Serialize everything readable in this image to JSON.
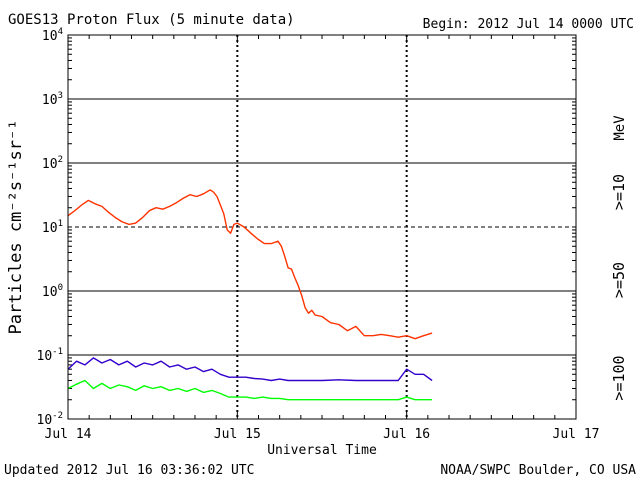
{
  "chart_data": {
    "type": "line",
    "title": "GOES13 Proton Flux (5 minute data)",
    "begin_label": "Begin: 2012 Jul 14 0000 UTC",
    "xlabel": "Universal Time",
    "ylabel": "Particles cm⁻²s⁻¹sr⁻¹",
    "footer_left": "Updated 2012 Jul 16 03:36:02 UTC",
    "footer_right": "NOAA/SWPC Boulder, CO USA",
    "units": "MeV",
    "x_ticks": [
      "Jul 14",
      "Jul 15",
      "Jul 16",
      "Jul 17"
    ],
    "xlim_days": [
      0,
      3
    ],
    "y_scale": "log",
    "ylim": [
      0.01,
      10000
    ],
    "y_ticks": [
      {
        "base": "10",
        "exp": "4"
      },
      {
        "base": "10",
        "exp": "3"
      },
      {
        "base": "10",
        "exp": "2"
      },
      {
        "base": "10",
        "exp": "1"
      },
      {
        "base": "10",
        "exp": "0"
      },
      {
        "base": "10",
        "exp": "-1"
      },
      {
        "base": "10",
        "exp": "-2"
      }
    ],
    "threshold_lines": [
      0.1,
      1,
      10,
      100,
      1000
    ],
    "dashed_lines": [
      10
    ],
    "series": [
      {
        "name": ">=10",
        "color": "#ff3300",
        "points": [
          [
            0,
            15
          ],
          [
            0.04,
            18
          ],
          [
            0.08,
            22
          ],
          [
            0.12,
            26
          ],
          [
            0.16,
            23
          ],
          [
            0.2,
            21
          ],
          [
            0.24,
            17
          ],
          [
            0.28,
            14
          ],
          [
            0.32,
            12
          ],
          [
            0.36,
            11
          ],
          [
            0.4,
            11.5
          ],
          [
            0.44,
            14
          ],
          [
            0.48,
            18
          ],
          [
            0.52,
            20
          ],
          [
            0.56,
            19
          ],
          [
            0.6,
            21
          ],
          [
            0.64,
            24
          ],
          [
            0.68,
            28
          ],
          [
            0.72,
            32
          ],
          [
            0.76,
            30
          ],
          [
            0.8,
            33
          ],
          [
            0.84,
            38
          ],
          [
            0.86,
            35
          ],
          [
            0.88,
            30
          ],
          [
            0.9,
            22
          ],
          [
            0.92,
            16
          ],
          [
            0.94,
            9
          ],
          [
            0.96,
            8
          ],
          [
            0.98,
            11
          ],
          [
            1.0,
            11.5
          ],
          [
            1.04,
            10
          ],
          [
            1.08,
            8
          ],
          [
            1.12,
            6.5
          ],
          [
            1.16,
            5.5
          ],
          [
            1.2,
            5.5
          ],
          [
            1.24,
            6
          ],
          [
            1.26,
            5
          ],
          [
            1.28,
            3.5
          ],
          [
            1.3,
            2.3
          ],
          [
            1.32,
            2.2
          ],
          [
            1.34,
            1.6
          ],
          [
            1.36,
            1.2
          ],
          [
            1.38,
            0.85
          ],
          [
            1.4,
            0.55
          ],
          [
            1.42,
            0.45
          ],
          [
            1.44,
            0.5
          ],
          [
            1.46,
            0.42
          ],
          [
            1.5,
            0.4
          ],
          [
            1.55,
            0.32
          ],
          [
            1.6,
            0.3
          ],
          [
            1.65,
            0.24
          ],
          [
            1.7,
            0.28
          ],
          [
            1.75,
            0.2
          ],
          [
            1.8,
            0.2
          ],
          [
            1.85,
            0.21
          ],
          [
            1.9,
            0.2
          ],
          [
            1.95,
            0.19
          ],
          [
            2.0,
            0.2
          ],
          [
            2.05,
            0.18
          ],
          [
            2.1,
            0.2
          ],
          [
            2.15,
            0.22
          ]
        ]
      },
      {
        "name": ">=50",
        "color": "#3300cc",
        "points": [
          [
            0,
            0.06
          ],
          [
            0.05,
            0.08
          ],
          [
            0.1,
            0.07
          ],
          [
            0.15,
            0.09
          ],
          [
            0.2,
            0.075
          ],
          [
            0.25,
            0.085
          ],
          [
            0.3,
            0.07
          ],
          [
            0.35,
            0.08
          ],
          [
            0.4,
            0.065
          ],
          [
            0.45,
            0.075
          ],
          [
            0.5,
            0.07
          ],
          [
            0.55,
            0.08
          ],
          [
            0.6,
            0.065
          ],
          [
            0.65,
            0.07
          ],
          [
            0.7,
            0.06
          ],
          [
            0.75,
            0.065
          ],
          [
            0.8,
            0.055
          ],
          [
            0.85,
            0.06
          ],
          [
            0.9,
            0.05
          ],
          [
            0.95,
            0.045
          ],
          [
            1.0,
            0.045
          ],
          [
            1.05,
            0.045
          ],
          [
            1.1,
            0.043
          ],
          [
            1.15,
            0.042
          ],
          [
            1.2,
            0.04
          ],
          [
            1.25,
            0.042
          ],
          [
            1.3,
            0.04
          ],
          [
            1.35,
            0.04
          ],
          [
            1.4,
            0.04
          ],
          [
            1.5,
            0.04
          ],
          [
            1.6,
            0.041
          ],
          [
            1.7,
            0.04
          ],
          [
            1.8,
            0.04
          ],
          [
            1.9,
            0.04
          ],
          [
            1.95,
            0.04
          ],
          [
            2.0,
            0.06
          ],
          [
            2.05,
            0.05
          ],
          [
            2.1,
            0.05
          ],
          [
            2.15,
            0.04
          ]
        ]
      },
      {
        "name": ">=100",
        "color": "#00ff00",
        "points": [
          [
            0,
            0.03
          ],
          [
            0.05,
            0.035
          ],
          [
            0.1,
            0.04
          ],
          [
            0.15,
            0.03
          ],
          [
            0.2,
            0.036
          ],
          [
            0.25,
            0.03
          ],
          [
            0.3,
            0.034
          ],
          [
            0.35,
            0.032
          ],
          [
            0.4,
            0.028
          ],
          [
            0.45,
            0.033
          ],
          [
            0.5,
            0.03
          ],
          [
            0.55,
            0.032
          ],
          [
            0.6,
            0.028
          ],
          [
            0.65,
            0.03
          ],
          [
            0.7,
            0.027
          ],
          [
            0.75,
            0.03
          ],
          [
            0.8,
            0.026
          ],
          [
            0.85,
            0.028
          ],
          [
            0.9,
            0.025
          ],
          [
            0.95,
            0.022
          ],
          [
            1.0,
            0.022
          ],
          [
            1.05,
            0.022
          ],
          [
            1.1,
            0.021
          ],
          [
            1.15,
            0.022
          ],
          [
            1.2,
            0.021
          ],
          [
            1.25,
            0.021
          ],
          [
            1.3,
            0.02
          ],
          [
            1.35,
            0.02
          ],
          [
            1.4,
            0.02
          ],
          [
            1.5,
            0.02
          ],
          [
            1.6,
            0.02
          ],
          [
            1.7,
            0.02
          ],
          [
            1.8,
            0.02
          ],
          [
            1.9,
            0.02
          ],
          [
            1.95,
            0.02
          ],
          [
            2.0,
            0.022
          ],
          [
            2.05,
            0.02
          ],
          [
            2.1,
            0.02
          ],
          [
            2.15,
            0.02
          ]
        ]
      }
    ]
  }
}
